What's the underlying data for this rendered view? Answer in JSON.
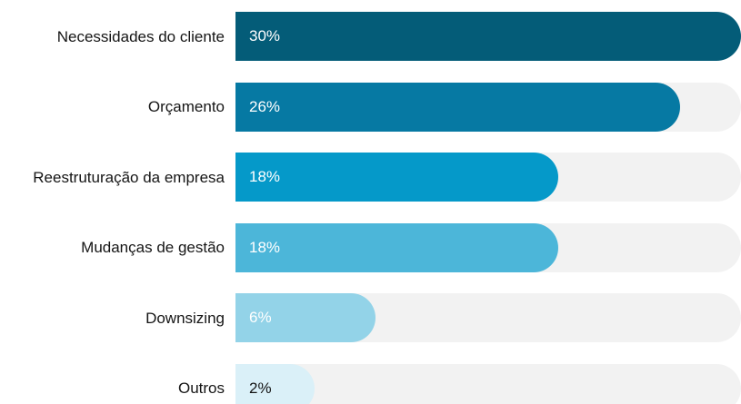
{
  "chart_data": {
    "type": "bar",
    "orientation": "horizontal",
    "categories": [
      "Necessidades do cliente",
      "Orçamento",
      "Reestruturação da empresa",
      "Mudanças de gestão",
      "Downsizing",
      "Outros"
    ],
    "values": [
      30,
      26,
      18,
      18,
      6,
      2
    ],
    "value_labels": [
      "30%",
      "26%",
      "18%",
      "18%",
      "6%",
      "2%"
    ],
    "colors": [
      "#045c78",
      "#0679a3",
      "#0599c9",
      "#4cb6d9",
      "#93d3e8",
      "#daf0f8"
    ],
    "xlim": [
      0,
      30
    ]
  }
}
